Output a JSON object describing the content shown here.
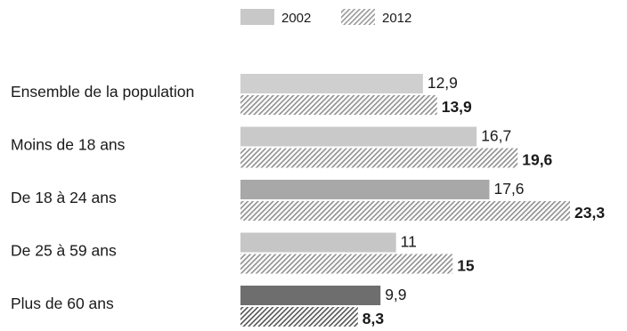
{
  "chart_data": {
    "type": "bar",
    "orientation": "horizontal",
    "categories": [
      "Ensemble de la population",
      "Moins de 18 ans",
      "De 18 à 24 ans",
      "De 25 à 59 ans",
      "Plus de 60 ans"
    ],
    "series": [
      {
        "name": "2002",
        "values": [
          12.9,
          16.7,
          17.6,
          11,
          9.9
        ],
        "labels": [
          "12,9",
          "16,7",
          "17,6",
          "11",
          "9,9"
        ]
      },
      {
        "name": "2012",
        "values": [
          13.9,
          19.6,
          23.3,
          15,
          8.3
        ],
        "labels": [
          "13,9",
          "19,6",
          "23,3",
          "15",
          "8,3"
        ]
      }
    ],
    "legend_position": "top",
    "grid": false,
    "xlim": [
      0,
      23.3
    ],
    "category_colors": [
      "#cfcfcf",
      "#c9c9c9",
      "#a8a8a8",
      "#c6c6c6",
      "#6e6e6e"
    ]
  }
}
